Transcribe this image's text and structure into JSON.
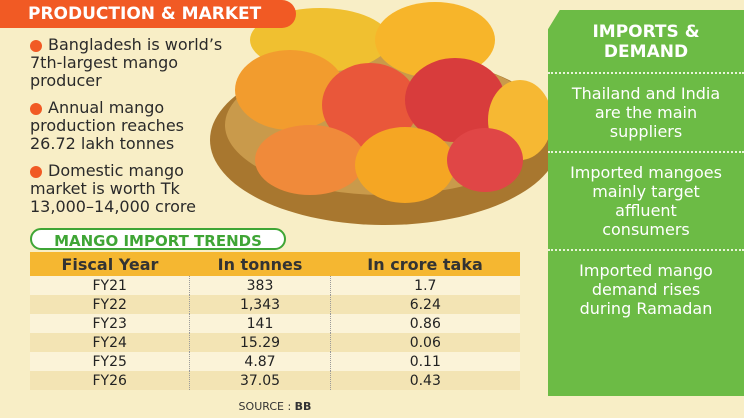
{
  "header": {
    "title": "PRODUCTION & MARKET"
  },
  "bullets": [
    "Bangladesh is world’s 7th-largest mango producer",
    "Annual mango production reaches 26.72 lakh tonnes",
    "Domestic mango market is worth Tk 13,000–14,000 crore"
  ],
  "imports": {
    "title": "IMPORTS & DEMAND",
    "points": [
      "Thailand and India are the main suppliers",
      "Imported mangoes mainly target affluent consumers",
      "Imported mango demand rises during Ramadan"
    ]
  },
  "table": {
    "title": "MANGO IMPORT TRENDS",
    "columns": [
      "Fiscal Year",
      "In tonnes",
      "In crore taka"
    ],
    "rows": [
      [
        "FY21",
        "383",
        "1.7"
      ],
      [
        "FY22",
        "1,343",
        "6.24"
      ],
      [
        "FY23",
        "141",
        "0.86"
      ],
      [
        "FY24",
        "15.29",
        "0.06"
      ],
      [
        "FY25",
        "4.87",
        "0.11"
      ],
      [
        "FY26",
        "37.05",
        "0.43"
      ]
    ]
  },
  "source": {
    "label": "SOURCE :",
    "value": "BB"
  }
}
